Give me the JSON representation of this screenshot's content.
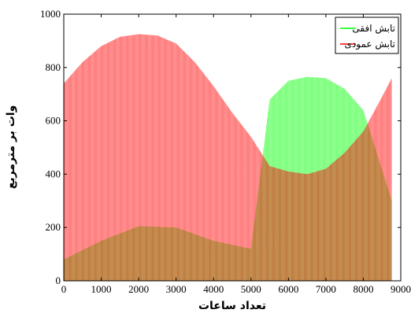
{
  "chart_data": {
    "type": "area",
    "xlabel": "تعداد ساعات",
    "ylabel": "وات بر مترمربع",
    "xlim": [
      0,
      9000
    ],
    "ylim": [
      0,
      1000
    ],
    "xticks": [
      0,
      1000,
      2000,
      3000,
      4000,
      5000,
      6000,
      7000,
      8000,
      9000
    ],
    "yticks": [
      0,
      200,
      400,
      600,
      800,
      1000
    ],
    "grid": false,
    "legend_position": "top-right",
    "series": [
      {
        "name": "تابش افقی",
        "color": "#00ff00",
        "envelope_x": [
          0,
          1000,
          2000,
          3000,
          4000,
          5000,
          5500,
          6000,
          6500,
          7000,
          7500,
          8000,
          8760
        ],
        "envelope_y": [
          80,
          150,
          205,
          200,
          150,
          120,
          680,
          750,
          765,
          760,
          720,
          640,
          300
        ]
      },
      {
        "name": "تابش عمودی",
        "color": "#ff0000",
        "envelope_x": [
          0,
          500,
          1000,
          1500,
          2000,
          2500,
          3000,
          3500,
          4000,
          4500,
          5000,
          5500,
          6000,
          6500,
          7000,
          7500,
          8000,
          8500,
          8760
        ],
        "envelope_y": [
          740,
          820,
          880,
          915,
          925,
          920,
          890,
          820,
          730,
          630,
          540,
          430,
          410,
          400,
          420,
          480,
          560,
          690,
          760
        ]
      }
    ]
  }
}
